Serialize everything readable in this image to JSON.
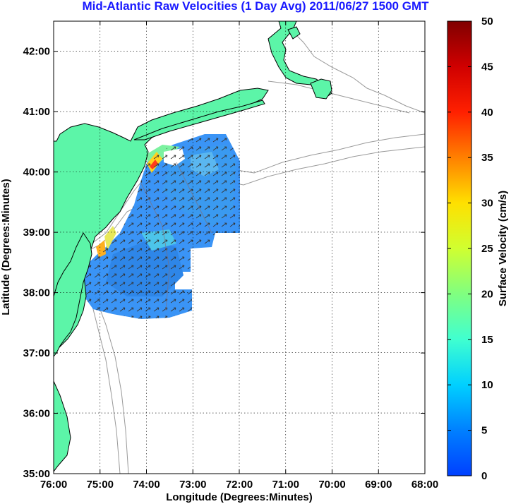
{
  "title": "Mid-Atlantic Raw Velocities (1 Day Avg) 2011/06/27 1500 GMT",
  "map": {
    "xlabel": "Longitude (Degrees:Minutes)",
    "ylabel": "Latitude (Degrees:Minutes)",
    "x_ticks": [
      "76:00",
      "75:00",
      "74:00",
      "73:00",
      "72:00",
      "71:00",
      "70:00",
      "69:00",
      "68:00"
    ],
    "y_ticks": [
      "42:00",
      "41:00",
      "40:00",
      "39:00",
      "38:00",
      "37:00",
      "36:00",
      "35:00"
    ],
    "x_range": [
      -76,
      -68
    ],
    "y_range": [
      35,
      42.5
    ],
    "grid": "dotted",
    "land_color": "#5cf5a8",
    "bathymetry_color": "#999999"
  },
  "colorbar": {
    "label": "Surface Velocity (cm/s)",
    "ticks": [
      "0",
      "5",
      "10",
      "15",
      "20",
      "25",
      "30",
      "35",
      "40",
      "45",
      "50"
    ],
    "range": [
      0,
      50
    ]
  }
}
